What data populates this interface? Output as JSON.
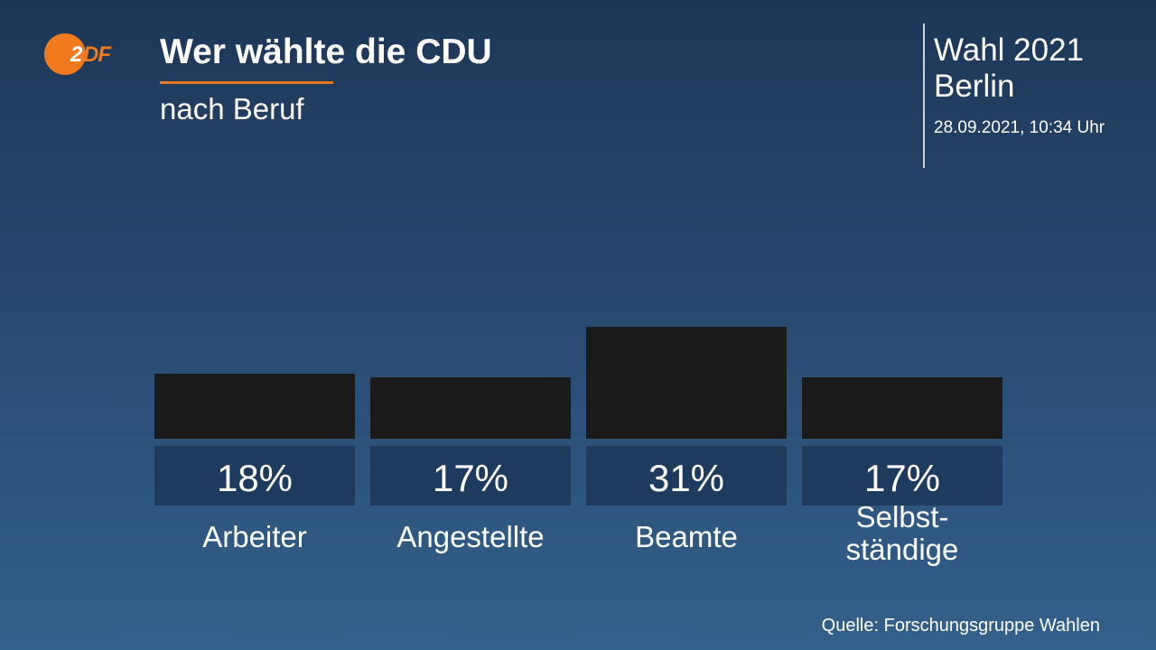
{
  "header": {
    "title": "Wer wählte die CDU",
    "subtitle": "nach Beruf",
    "logo_text": "2DF"
  },
  "election": {
    "line1": "Wahl 2021",
    "line2": "Berlin",
    "timestamp": "28.09.2021, 10:34 Uhr"
  },
  "source": "Quelle: Forschungsgruppe Wahlen",
  "colors": {
    "bar": "#1a1a1a",
    "value_box": "#1e3a5c",
    "accent": "#f07a1d",
    "text": "#ffffff"
  },
  "chart_data": {
    "type": "bar",
    "categories": [
      "Arbeiter",
      "Angestellte",
      "Beamte",
      "Selbst-\nständige"
    ],
    "values": [
      18,
      17,
      31,
      17
    ],
    "value_labels": [
      "18%",
      "17%",
      "31%",
      "17%"
    ],
    "unit": "%",
    "grid": false
  }
}
